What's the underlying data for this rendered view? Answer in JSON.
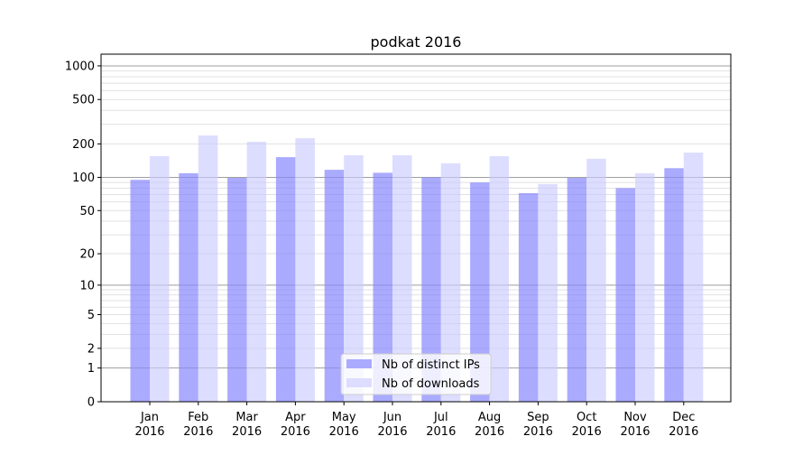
{
  "chart_data": {
    "type": "bar",
    "title": "podkat 2016",
    "xlabel": "",
    "ylabel": "",
    "yscale": "log(1+y)",
    "ylim": [
      0,
      1300
    ],
    "yticks": [
      0,
      1,
      2,
      5,
      10,
      20,
      50,
      100,
      200,
      500,
      1000
    ],
    "grid": true,
    "legend_position": "bottom-center",
    "categories": [
      "Jan\n2016",
      "Feb\n2016",
      "Mar\n2016",
      "Apr\n2016",
      "May\n2016",
      "Jun\n2016",
      "Jul\n2016",
      "Aug\n2016",
      "Sep\n2016",
      "Oct\n2016",
      "Nov\n2016",
      "Dec\n2016"
    ],
    "series": [
      {
        "name": "Nb of distinct IPs",
        "color": "#aaaaff",
        "values": [
          95,
          109,
          99,
          152,
          117,
          110,
          100,
          90,
          72,
          99,
          80,
          121
        ]
      },
      {
        "name": "Nb of downloads",
        "color": "#ddddff",
        "values": [
          155,
          238,
          209,
          225,
          158,
          158,
          134,
          155,
          87,
          147,
          109,
          167
        ]
      }
    ]
  }
}
